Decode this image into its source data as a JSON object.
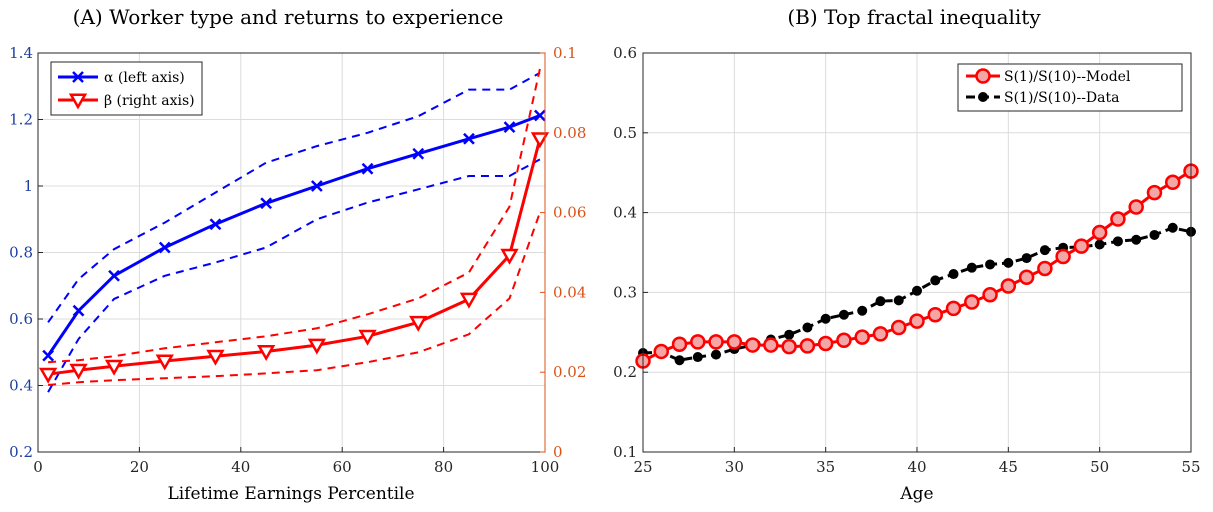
{
  "chart_data": [
    {
      "type": "line",
      "title": "(A) Worker type and returns to experience",
      "xlabel": "Lifetime Earnings Percentile",
      "ylabel_left": "",
      "ylabel_right": "",
      "xlim": [
        0,
        100
      ],
      "ylim_left": [
        0.2,
        1.4
      ],
      "ylim_right": [
        0,
        0.1
      ],
      "x_ticks": [
        "0",
        "20",
        "40",
        "60",
        "80",
        "100"
      ],
      "y_left_ticks": [
        "0.2",
        "0.4",
        "0.6",
        "0.8",
        "1",
        "1.2",
        "1.4"
      ],
      "y_right_ticks": [
        "0",
        "0.02",
        "0.04",
        "0.06",
        "0.08",
        "0.1"
      ],
      "grid": true,
      "legend_position": "top-left",
      "colors": {
        "alpha": "#0000ff",
        "beta": "#ff0000",
        "right_axis": "#d95319"
      },
      "x": [
        2,
        8,
        15,
        25,
        35,
        45,
        55,
        65,
        75,
        85,
        93,
        99
      ],
      "series": [
        {
          "name": "α (left axis)",
          "axis": "left",
          "marker": "x",
          "style": "solid",
          "values": [
            0.49,
            0.625,
            0.73,
            0.815,
            0.885,
            0.948,
            1.0,
            1.052,
            1.097,
            1.142,
            1.177,
            1.212
          ]
        },
        {
          "name": "",
          "axis": "left",
          "style": "dashed",
          "role": "upper band",
          "values": [
            0.59,
            0.72,
            0.81,
            0.89,
            0.98,
            1.07,
            1.12,
            1.16,
            1.21,
            1.29,
            1.29,
            1.34
          ]
        },
        {
          "name": "",
          "axis": "left",
          "style": "dashed",
          "role": "lower band",
          "values": [
            0.38,
            0.54,
            0.66,
            0.73,
            0.77,
            0.815,
            0.9,
            0.95,
            0.99,
            1.03,
            1.03,
            1.08
          ]
        },
        {
          "name": "β (right axis)",
          "axis": "right",
          "marker": "triangle-down",
          "style": "solid",
          "values": [
            0.0195,
            0.0205,
            0.0215,
            0.0228,
            0.024,
            0.0252,
            0.0268,
            0.029,
            0.0325,
            0.0383,
            0.0493,
            0.0785
          ]
        },
        {
          "name": "",
          "axis": "right",
          "style": "dashed",
          "role": "upper band",
          "values": [
            0.0225,
            0.023,
            0.024,
            0.026,
            0.0275,
            0.029,
            0.031,
            0.0345,
            0.0385,
            0.045,
            0.0615,
            0.096
          ]
        },
        {
          "name": "",
          "axis": "right",
          "style": "dashed",
          "role": "lower band",
          "values": [
            0.0168,
            0.0175,
            0.018,
            0.0185,
            0.019,
            0.0197,
            0.0205,
            0.0225,
            0.025,
            0.0295,
            0.0385,
            0.06
          ]
        }
      ]
    },
    {
      "type": "line",
      "title": "(B) Top fractal inequality",
      "xlabel": "Age",
      "ylabel": "",
      "xlim": [
        25,
        55
      ],
      "ylim": [
        0.1,
        0.6
      ],
      "x_ticks": [
        "25",
        "30",
        "35",
        "40",
        "45",
        "50",
        "55"
      ],
      "y_ticks": [
        "0.1",
        "0.2",
        "0.3",
        "0.4",
        "0.5",
        "0.6"
      ],
      "grid": true,
      "legend_position": "top-right",
      "colors": {
        "model": "#ff0000",
        "model_fill": "#f4a6a6",
        "data": "#000000"
      },
      "x": [
        25,
        26,
        27,
        28,
        29,
        30,
        31,
        32,
        33,
        34,
        35,
        36,
        37,
        38,
        39,
        40,
        41,
        42,
        43,
        44,
        45,
        46,
        47,
        48,
        49,
        50,
        51,
        52,
        53,
        54,
        55
      ],
      "series": [
        {
          "name": "S(1)/S(10)--Model",
          "marker": "circle",
          "values": [
            0.214,
            0.226,
            0.235,
            0.238,
            0.238,
            0.238,
            0.234,
            0.234,
            0.232,
            0.233,
            0.236,
            0.24,
            0.244,
            0.248,
            0.256,
            0.264,
            0.272,
            0.28,
            0.288,
            0.297,
            0.308,
            0.319,
            0.33,
            0.345,
            0.358,
            0.375,
            0.392,
            0.407,
            0.425,
            0.438,
            0.452
          ]
        },
        {
          "name": "S(1)/S(10)--Data",
          "marker": "dot",
          "values": [
            0.224,
            0.225,
            0.215,
            0.219,
            0.222,
            0.229,
            0.234,
            0.241,
            0.247,
            0.256,
            0.267,
            0.272,
            0.277,
            0.289,
            0.29,
            0.302,
            0.315,
            0.323,
            0.331,
            0.335,
            0.337,
            0.343,
            0.353,
            0.356,
            0.357,
            0.36,
            0.364,
            0.366,
            0.372,
            0.381,
            0.376
          ]
        }
      ]
    }
  ]
}
